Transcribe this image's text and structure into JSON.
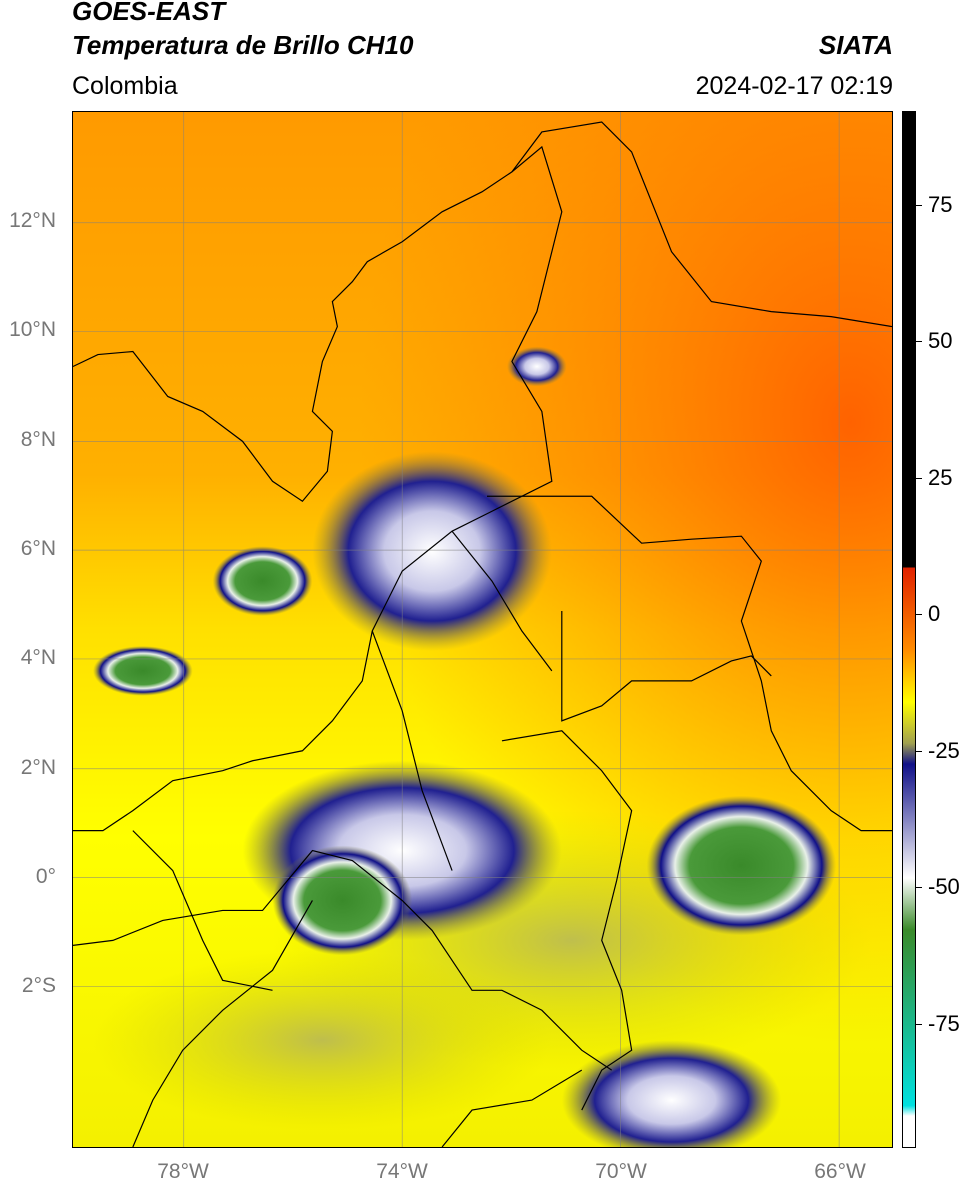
{
  "header": {
    "line1": "GOES-EAST",
    "line2": "Temperatura de Brillo CH10",
    "region": "Colombia",
    "brand": "SIATA",
    "datetime": "2024-02-17 02:19"
  },
  "map": {
    "lat_labels": [
      "12°N",
      "10°N",
      "8°N",
      "6°N",
      "4°N",
      "2°N",
      "0°",
      "2°S"
    ],
    "lon_labels": [
      "78°W",
      "74°W",
      "70°W",
      "66°W"
    ]
  },
  "colorbar": {
    "labels": [
      "75",
      "50",
      "25",
      "0",
      "-25",
      "-50",
      "-75"
    ],
    "colors": {
      "black": "#000000",
      "red": "#e02000",
      "orange": "#ff8c00",
      "yellow": "#ffff00",
      "olive": "#a0a050",
      "navy": "#101088",
      "white": "#ffffff",
      "green": "#3a8a2a",
      "cyan": "#00e0e0"
    }
  }
}
